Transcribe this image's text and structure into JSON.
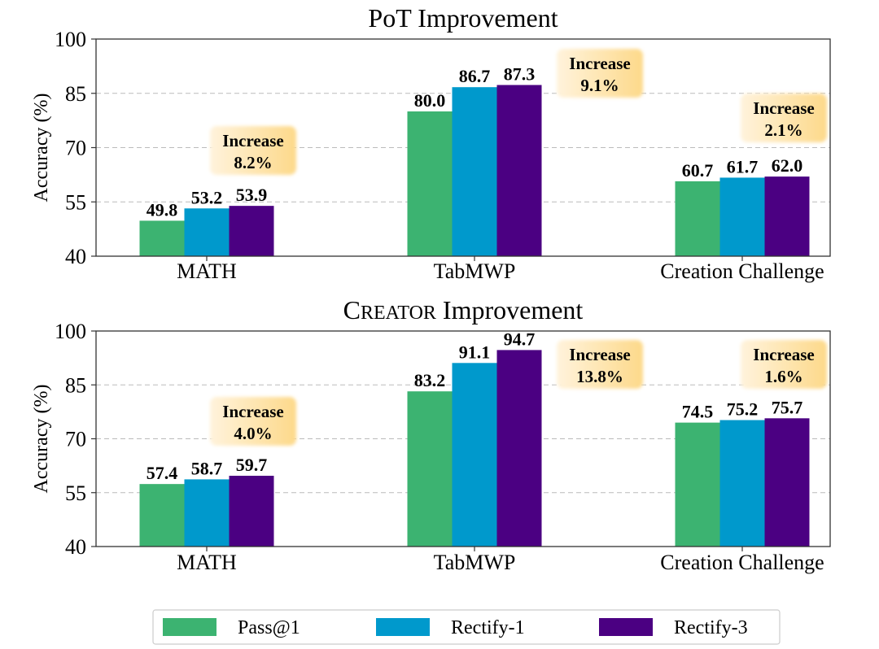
{
  "chart_data": [
    {
      "type": "bar",
      "title": "PoT Improvement",
      "xlabel": "",
      "ylabel": "Accuracy (%)",
      "ylim": [
        40,
        100
      ],
      "yticks": [
        "40",
        "55",
        "70",
        "85",
        "100"
      ],
      "grid": true,
      "categories": [
        "MATH",
        "TabMWP",
        "Creation Challenge"
      ],
      "series": [
        {
          "name": "Pass@1",
          "values": [
            49.8,
            80.0,
            60.7
          ],
          "labels": [
            "49.8",
            "80.0",
            "60.7"
          ]
        },
        {
          "name": "Rectify-1",
          "values": [
            53.2,
            86.7,
            61.7
          ],
          "labels": [
            "53.2",
            "86.7",
            "61.7"
          ]
        },
        {
          "name": "Rectify-3",
          "values": [
            53.9,
            87.3,
            62.0
          ],
          "labels": [
            "53.9",
            "87.3",
            "62.0"
          ]
        }
      ],
      "annotations": [
        {
          "line1": "Increase",
          "line2": "8.2%"
        },
        {
          "line1": "Increase",
          "line2": "9.1%"
        },
        {
          "line1": "Increase",
          "line2": "2.1%"
        }
      ]
    },
    {
      "type": "bar",
      "title": "CREATOR Improvement",
      "xlabel": "",
      "ylabel": "Accuracy (%)",
      "ylim": [
        40,
        100
      ],
      "yticks": [
        "40",
        "55",
        "70",
        "85",
        "100"
      ],
      "grid": true,
      "categories": [
        "MATH",
        "TabMWP",
        "Creation Challenge"
      ],
      "series": [
        {
          "name": "Pass@1",
          "values": [
            57.4,
            83.2,
            74.5
          ],
          "labels": [
            "57.4",
            "83.2",
            "74.5"
          ]
        },
        {
          "name": "Rectify-1",
          "values": [
            58.7,
            91.1,
            75.2
          ],
          "labels": [
            "58.7",
            "91.1",
            "75.2"
          ]
        },
        {
          "name": "Rectify-3",
          "values": [
            59.7,
            94.7,
            75.7
          ],
          "labels": [
            "59.7",
            "94.7",
            "75.7"
          ]
        }
      ],
      "annotations": [
        {
          "line1": "Increase",
          "line2": "4.0%"
        },
        {
          "line1": "Increase",
          "line2": "13.8%"
        },
        {
          "line1": "Increase",
          "line2": "1.6%"
        }
      ]
    }
  ],
  "legend": {
    "placement": "bottom-center",
    "items": [
      {
        "label": "Pass@1",
        "color": "#3cb371"
      },
      {
        "label": "Rectify-1",
        "color": "#0099cc"
      },
      {
        "label": "Rectify-3",
        "color": "#4b0082"
      }
    ]
  }
}
